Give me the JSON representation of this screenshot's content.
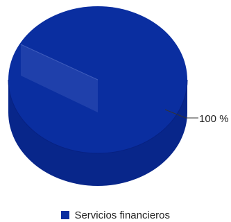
{
  "chart_data": {
    "type": "pie",
    "title": "",
    "slices": [
      {
        "label": "Servicios financieros",
        "value": 100,
        "percent_label": "100 %"
      }
    ],
    "legend_position": "bottom",
    "style": "3d-cylinder"
  },
  "colors": {
    "slice": "#0a2ea0",
    "slice_dark": "#08268a",
    "highlight": "#3a56b8",
    "leader": "#333333"
  }
}
